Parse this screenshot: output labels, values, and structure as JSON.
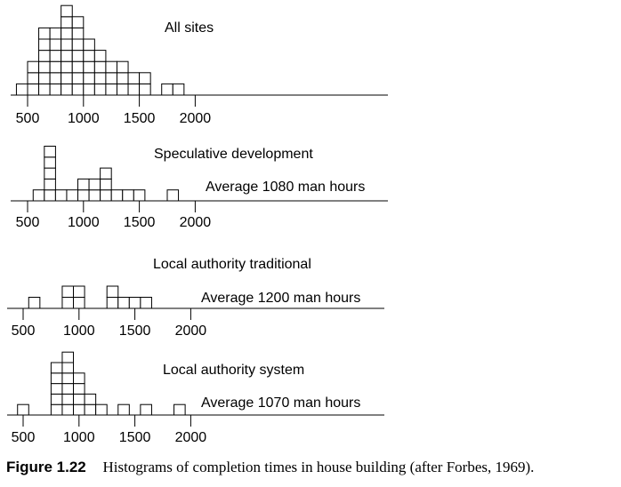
{
  "chart_data": [
    {
      "type": "bar",
      "title": "All sites",
      "subtitle": "",
      "x_ticks": [
        500,
        1000,
        1500,
        2000
      ],
      "bin_width": 100,
      "bins": [
        {
          "x": 450,
          "count": 1
        },
        {
          "x": 550,
          "count": 3
        },
        {
          "x": 650,
          "count": 6
        },
        {
          "x": 750,
          "count": 6
        },
        {
          "x": 850,
          "count": 8
        },
        {
          "x": 950,
          "count": 7
        },
        {
          "x": 1050,
          "count": 5
        },
        {
          "x": 1150,
          "count": 4
        },
        {
          "x": 1250,
          "count": 3
        },
        {
          "x": 1350,
          "count": 3
        },
        {
          "x": 1450,
          "count": 2
        },
        {
          "x": 1550,
          "count": 2
        },
        {
          "x": 1750,
          "count": 1
        },
        {
          "x": 1850,
          "count": 1
        }
      ]
    },
    {
      "type": "bar",
      "title": "Speculative development",
      "subtitle": "Average 1080 man hours",
      "x_ticks": [
        500,
        1000,
        1500,
        2000
      ],
      "bin_width": 100,
      "bins": [
        {
          "x": 600,
          "count": 1
        },
        {
          "x": 700,
          "count": 5
        },
        {
          "x": 800,
          "count": 1
        },
        {
          "x": 900,
          "count": 1
        },
        {
          "x": 1000,
          "count": 2
        },
        {
          "x": 1100,
          "count": 2
        },
        {
          "x": 1200,
          "count": 3
        },
        {
          "x": 1300,
          "count": 1
        },
        {
          "x": 1400,
          "count": 1
        },
        {
          "x": 1500,
          "count": 1
        },
        {
          "x": 1800,
          "count": 1
        }
      ]
    },
    {
      "type": "bar",
      "title": "Local authority traditional",
      "subtitle": "Average 1200 man hours",
      "x_ticks": [
        500,
        1000,
        1500,
        2000
      ],
      "bin_width": 100,
      "bins": [
        {
          "x": 600,
          "count": 1
        },
        {
          "x": 900,
          "count": 2
        },
        {
          "x": 1000,
          "count": 2
        },
        {
          "x": 1300,
          "count": 2
        },
        {
          "x": 1400,
          "count": 1
        },
        {
          "x": 1500,
          "count": 1
        },
        {
          "x": 1600,
          "count": 1
        }
      ]
    },
    {
      "type": "bar",
      "title": "Local authority system",
      "subtitle": "Average 1070 man hours",
      "x_ticks": [
        500,
        1000,
        1500,
        2000
      ],
      "bin_width": 100,
      "bins": [
        {
          "x": 500,
          "count": 1
        },
        {
          "x": 800,
          "count": 5
        },
        {
          "x": 900,
          "count": 6
        },
        {
          "x": 1000,
          "count": 4
        },
        {
          "x": 1100,
          "count": 2
        },
        {
          "x": 1200,
          "count": 1
        },
        {
          "x": 1400,
          "count": 1
        },
        {
          "x": 1600,
          "count": 1
        },
        {
          "x": 1900,
          "count": 1
        }
      ]
    }
  ],
  "caption": {
    "label": "Figure 1.22",
    "text": "Histograms of completion times in house building (after Forbes, 1969)."
  }
}
